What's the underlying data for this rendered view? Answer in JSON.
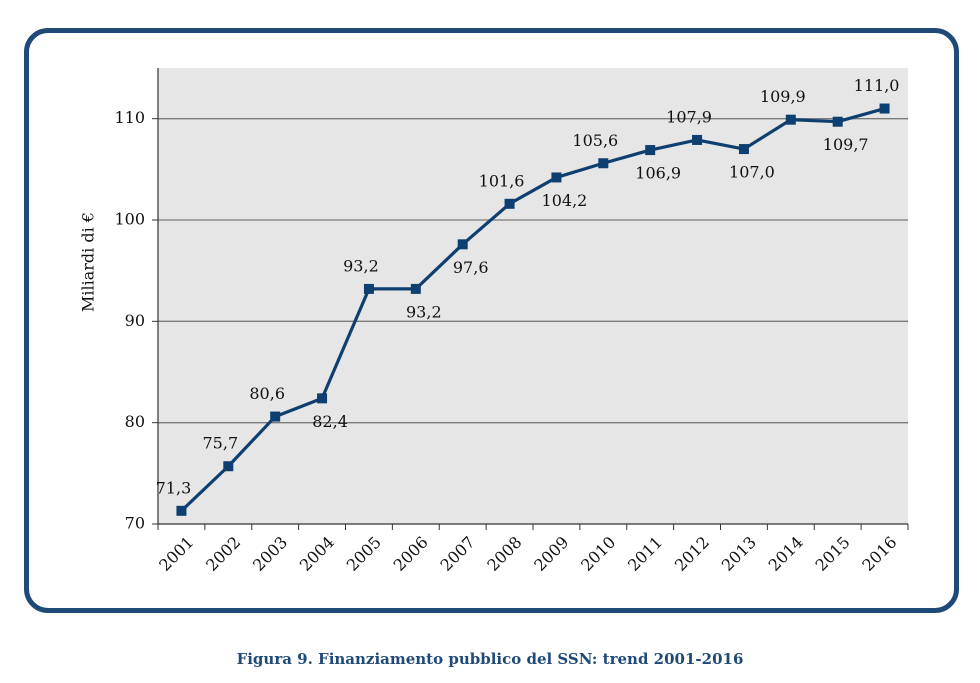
{
  "chart_data": {
    "type": "line",
    "title": "",
    "xlabel": "",
    "ylabel": "Miliardi di €",
    "ylim": [
      70,
      115
    ],
    "yticks": [
      70,
      80,
      90,
      100,
      110
    ],
    "categories": [
      "2001",
      "2002",
      "2003",
      "2004",
      "2005",
      "2006",
      "2007",
      "2008",
      "2009",
      "2010",
      "2011",
      "2012",
      "2013",
      "2014",
      "2015",
      "2016"
    ],
    "series": [
      {
        "name": "Finanziamento pubblico SSN",
        "values": [
          71.3,
          75.7,
          80.6,
          82.4,
          93.2,
          93.2,
          97.6,
          101.6,
          104.2,
          105.6,
          106.9,
          107.9,
          107.0,
          109.9,
          109.7,
          111.0
        ],
        "labels": [
          "71,3",
          "75,7",
          "80,6",
          "82,4",
          "93,2",
          "93,2",
          "97,6",
          "101,6",
          "104,2",
          "105,6",
          "106,9",
          "107,9",
          "107,0",
          "109,9",
          "109,7",
          "111,0"
        ],
        "label_positions": [
          "above",
          "above",
          "above",
          "below",
          "above",
          "below",
          "below",
          "above",
          "below",
          "above",
          "below",
          "above",
          "below",
          "above",
          "below",
          "above"
        ],
        "color": "#0d3f70"
      }
    ],
    "grid": true,
    "legend": "none"
  },
  "caption": "Figura 9. Finanziamento pubblico del SSN: trend 2001-2016",
  "colors": {
    "frame": "#1f4a78",
    "plot_bg": "#e6e6e6",
    "grid": "#7a7a7a",
    "line": "#0d3f70",
    "caption": "#1f4a78"
  }
}
